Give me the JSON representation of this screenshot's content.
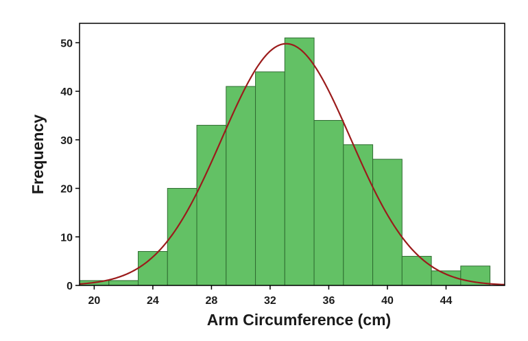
{
  "chart_data": {
    "type": "bar",
    "subtype": "histogram",
    "xlabel": "Arm Circumference (cm)",
    "ylabel": "Frequency",
    "xlim": [
      19,
      48
    ],
    "ylim": [
      0,
      54
    ],
    "xticks": [
      20,
      24,
      28,
      32,
      36,
      40,
      44
    ],
    "yticks": [
      0,
      10,
      20,
      30,
      40,
      50
    ],
    "bin_width": 2,
    "bins": [
      {
        "start": 19,
        "end": 21,
        "value": 1
      },
      {
        "start": 21,
        "end": 23,
        "value": 1
      },
      {
        "start": 23,
        "end": 25,
        "value": 7
      },
      {
        "start": 25,
        "end": 27,
        "value": 20
      },
      {
        "start": 27,
        "end": 29,
        "value": 33
      },
      {
        "start": 29,
        "end": 31,
        "value": 41
      },
      {
        "start": 31,
        "end": 33,
        "value": 44
      },
      {
        "start": 33,
        "end": 35,
        "value": 51
      },
      {
        "start": 35,
        "end": 37,
        "value": 34
      },
      {
        "start": 37,
        "end": 39,
        "value": 29
      },
      {
        "start": 39,
        "end": 41,
        "value": 26
      },
      {
        "start": 41,
        "end": 43,
        "value": 6
      },
      {
        "start": 43,
        "end": 45,
        "value": 3
      },
      {
        "start": 45,
        "end": 47,
        "value": 4
      }
    ],
    "fit_curve": {
      "type": "normal",
      "mean": 33.1,
      "sd": 4.4,
      "peak": 49.8
    },
    "grid": false,
    "legend": "none"
  },
  "colors": {
    "bar_fill": "#63c165",
    "bar_edge": "#2e6b30",
    "curve": "#9b1b1b",
    "axis": "#000000"
  }
}
